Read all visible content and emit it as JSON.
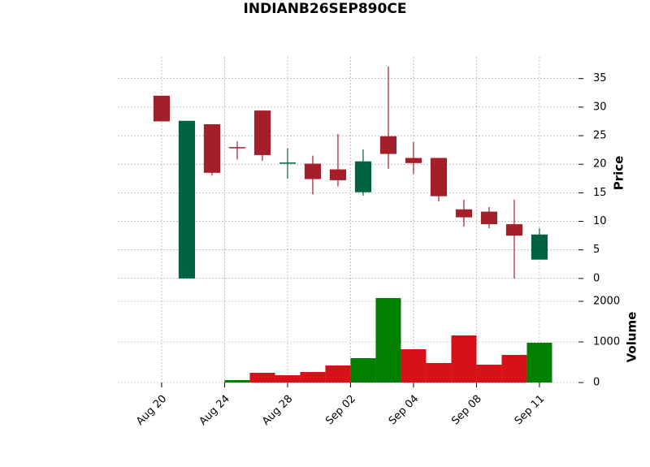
{
  "chart_data": {
    "type": "candlestick",
    "title": "INDIANB26SEP890CE",
    "x": [
      0,
      1,
      2,
      3,
      4,
      5,
      6,
      7,
      8,
      9,
      10,
      11,
      12,
      13,
      14,
      15
    ],
    "xlim": [
      -1.74,
      16.55
    ],
    "xticks": [
      {
        "value": 0,
        "label": "Aug 20"
      },
      {
        "value": 2.5,
        "label": "Aug 24"
      },
      {
        "value": 5,
        "label": "Aug 28"
      },
      {
        "value": 7.5,
        "label": "Sep 02"
      },
      {
        "value": 10,
        "label": "Sep 04"
      },
      {
        "value": 12.5,
        "label": "Sep 08"
      },
      {
        "value": 15,
        "label": "Sep 11"
      }
    ],
    "open": [
      32,
      0,
      27,
      23,
      29.4,
      20.1,
      20.1,
      19.1,
      15.1,
      24.9,
      21.1,
      21.1,
      12.1,
      11.7,
      9.5,
      3.3
    ],
    "high": [
      32,
      27.6,
      27,
      24,
      29.4,
      22.8,
      21.5,
      25.3,
      22.6,
      37.1,
      23.9,
      21.1,
      13.8,
      12.5,
      13.8,
      8.8
    ],
    "low": [
      27.5,
      0,
      18,
      20.8,
      20.6,
      17.5,
      14.7,
      16.1,
      14.5,
      19.2,
      18.3,
      13.5,
      9.1,
      8.8,
      0,
      3.3
    ],
    "close": [
      27.5,
      27.6,
      18.5,
      23,
      21.6,
      20.3,
      17.4,
      17.2,
      20.5,
      21.8,
      20.2,
      14.4,
      10.7,
      9.5,
      7.5,
      7.7
    ],
    "up_color": "#006340",
    "down_color": "#a51f2b",
    "ylabel": "Price",
    "ylim": [
      -1.3,
      38.8
    ],
    "yticks": [
      0,
      5,
      10,
      15,
      20,
      25,
      30,
      35
    ],
    "volume": {
      "ylabel": "Volume",
      "values": [
        0,
        0,
        0,
        60,
        240,
        180,
        260,
        420,
        600,
        2080,
        820,
        480,
        1160,
        440,
        680,
        980
      ],
      "colors": [
        "#007f00",
        "#007f00",
        "#d6111a",
        "#007f00",
        "#d6111a",
        "#d6111a",
        "#d6111a",
        "#d6111a",
        "#007f00",
        "#007f00",
        "#d6111a",
        "#d6111a",
        "#d6111a",
        "#d6111a",
        "#d6111a",
        "#007f00"
      ],
      "ylim": [
        0,
        2260
      ],
      "yticks": [
        0,
        1000,
        2000
      ]
    },
    "grid": true
  }
}
